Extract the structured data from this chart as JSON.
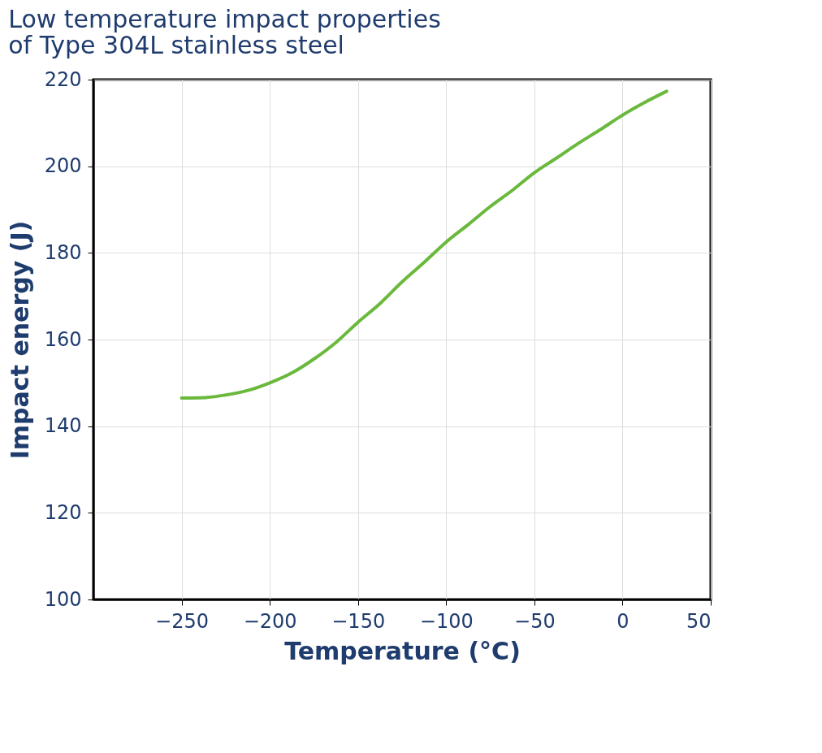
{
  "chart_data": {
    "type": "line",
    "title": [
      "Low temperature impact properties",
      "of Type 304L stainless steel"
    ],
    "xlabel": "Temperature (°C)",
    "ylabel": "Impact energy (J)",
    "x": [
      -250,
      -237,
      -225,
      -212,
      -200,
      -187,
      -175,
      -162,
      -150,
      -137,
      -125,
      -112,
      -100,
      -87,
      -75,
      -62,
      -50,
      -37,
      -25,
      -12,
      0,
      12,
      25
    ],
    "series": [
      {
        "color": "#6ab93d",
        "values": [
          146.5,
          146.6,
          147.2,
          148.3,
          150,
          152.4,
          155.5,
          159.5,
          164,
          168.5,
          173.3,
          178,
          182.5,
          186.7,
          190.7,
          194.6,
          198.5,
          202,
          205.3,
          208.6,
          211.8,
          214.6,
          217.3
        ]
      }
    ],
    "xlim": [
      -300,
      50
    ],
    "xticks": [
      -250,
      -200,
      -150,
      -100,
      -50,
      0,
      50
    ],
    "ylim": [
      100,
      220
    ],
    "yticks": [
      100,
      120,
      140,
      160,
      180,
      200,
      220
    ],
    "grid": true,
    "legend": false,
    "marker": "none",
    "line_style": "solid"
  }
}
